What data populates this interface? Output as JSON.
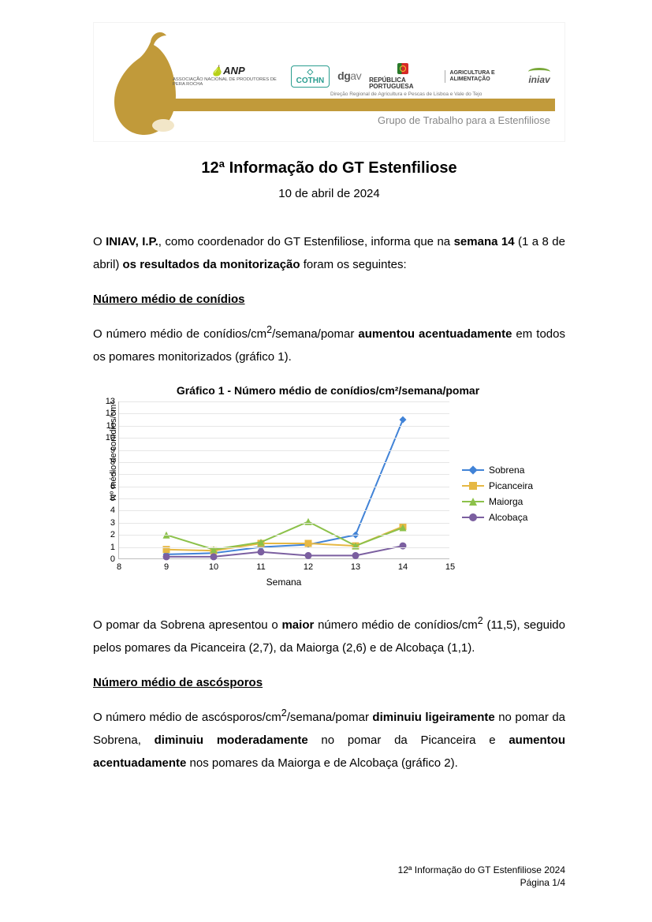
{
  "header": {
    "logos": {
      "anp": "ANP",
      "anp_sub": "ASSOCIAÇÃO NACIONAL DE PRODUTORES DE PERA ROCHA",
      "cothn": "COTHN",
      "dgav": "dgav",
      "rp": "REPÚBLICA PORTUGUESA",
      "agri": "AGRICULTURA E ALIMENTAÇÃO",
      "dr_line": "Direção Regional de Agricultura e Pescas de Lisboa e Vale do Tejo",
      "iniav": "iniav"
    },
    "subtitle": "Grupo de Trabalho para a Estenfiliose",
    "pear_color": "#c19a3a"
  },
  "title": "12ª Informação do GT Estenfiliose",
  "date": "10 de abril de 2024",
  "intro": {
    "p1_a": "O ",
    "p1_b": "INIAV, I.P.",
    "p1_c": ", como coordenador do GT Estenfiliose, informa que na ",
    "p1_d": "semana 14",
    "p1_e": " (1 a 8 de abril) ",
    "p1_f": "os resultados da monitorização",
    "p1_g": " foram os seguintes:"
  },
  "section1": {
    "heading": "Número médio de conídios",
    "p_a": "O número médio de conídios/cm",
    "p_b": "/semana/pomar ",
    "p_c": "aumentou acentuadamente",
    "p_d": " em todos os pomares monitorizados (gráfico 1)."
  },
  "chart1": {
    "title": "Gráfico 1 - Número médio de conídios/cm²/semana/pomar",
    "type": "line",
    "xlabel": "Semana",
    "ylabel": "Nº médio de conídios/cm²",
    "xlim": [
      8,
      15
    ],
    "ylim": [
      0,
      13
    ],
    "ytick_step": 1,
    "xtick_step": 1,
    "grid_color": "#e6e6e6",
    "axis_color": "#bfbfbf",
    "label_fontsize": 11,
    "title_fontsize": 14,
    "line_width": 2,
    "marker_size": 9,
    "series": [
      {
        "name": "Sobrena",
        "color": "#4183d7",
        "marker": "diamond",
        "x": [
          9,
          10,
          11,
          12,
          13,
          14
        ],
        "y": [
          0.4,
          0.5,
          1.0,
          1.2,
          2.0,
          11.5
        ]
      },
      {
        "name": "Picanceira",
        "color": "#e6b844",
        "marker": "square",
        "x": [
          9,
          10,
          11,
          12,
          13,
          14
        ],
        "y": [
          0.8,
          0.7,
          1.3,
          1.3,
          1.1,
          2.7
        ]
      },
      {
        "name": "Maiorga",
        "color": "#8cc14a",
        "marker": "triangle",
        "x": [
          9,
          10,
          11,
          12,
          13,
          14
        ],
        "y": [
          2.0,
          0.8,
          1.4,
          3.1,
          1.1,
          2.6
        ]
      },
      {
        "name": "Alcobaça",
        "color": "#7b5fa0",
        "marker": "circle",
        "x": [
          9,
          10,
          11,
          12,
          13,
          14
        ],
        "y": [
          0.2,
          0.2,
          0.6,
          0.3,
          0.3,
          1.1
        ]
      }
    ]
  },
  "after_chart": {
    "a": "O pomar da Sobrena apresentou o ",
    "b": "maior",
    "c": " número médio de conídios/cm",
    "d": " (11,5), seguido pelos pomares da Picanceira (2,7), da Maiorga (2,6) e de Alcobaça (1,1)."
  },
  "section2": {
    "heading": "Número médio de ascósporos",
    "a": "O número médio de ascósporos/cm",
    "b": "/semana/pomar ",
    "c": "diminuiu ligeiramente",
    "d": " no pomar da Sobrena, ",
    "e": "diminuiu moderadamente",
    "f": " no pomar da Picanceira e ",
    "g": "aumentou acentuadamente",
    "h": " nos pomares da Maiorga e de Alcobaça (gráfico 2)."
  },
  "footer": {
    "line1": "12ª Informação do GT Estenfiliose 2024",
    "line2": "Página 1/4"
  }
}
